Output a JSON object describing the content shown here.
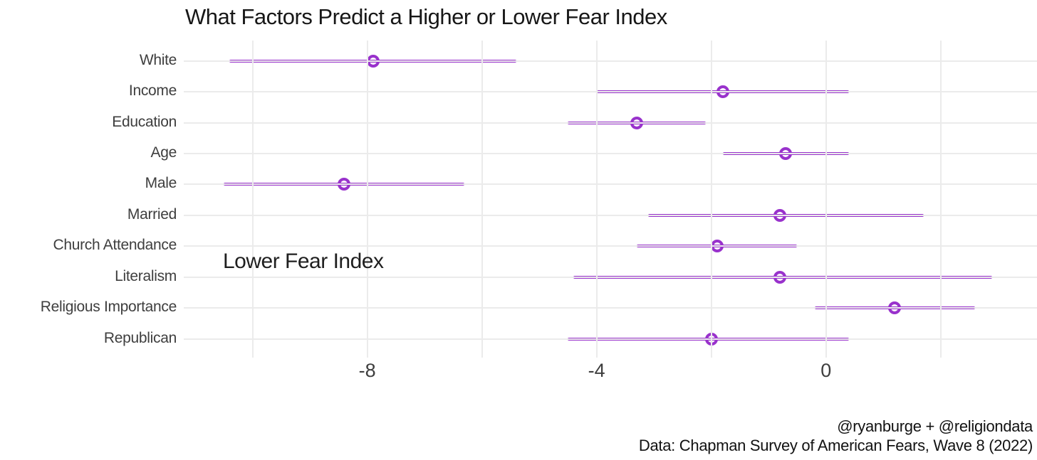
{
  "chart_data": {
    "type": "scatter",
    "subtype": "coefficient-dot-whisker",
    "title": "What Factors Predict a Higher or Lower Fear Index",
    "annotation": "Lower Fear Index",
    "caption_line1": "@ryanburge + @religiondata",
    "caption_line2": "Data: Chapman Survey of American Fears, Wave 8 (2022)",
    "xlabel": "",
    "ylabel": "",
    "legend_position": "none",
    "grid": "on",
    "x_ticks": [
      -8,
      -4,
      0
    ],
    "x_minor_gridlines": [
      -10,
      -6,
      -2,
      2
    ],
    "xlim": [
      -11.2,
      3.68
    ],
    "zero_reference_line": 0,
    "accent_color": "#9932CC",
    "grid_color": "#ebebeb",
    "zero_line_color": "#1c1c1c",
    "categories": [
      "White",
      "Income",
      "Education",
      "Age",
      "Male",
      "Married",
      "Church Attendance",
      "Literalism",
      "Religious Importance",
      "Republican"
    ],
    "series": [
      {
        "name": "estimate",
        "values": [
          -7.9,
          -1.8,
          -3.3,
          -0.7,
          -8.4,
          -0.8,
          -1.9,
          -0.8,
          1.2,
          -2.0
        ]
      },
      {
        "name": "ci_low",
        "values": [
          -10.4,
          -4.0,
          -4.5,
          -1.8,
          -10.5,
          -3.1,
          -3.3,
          -4.4,
          -0.2,
          -4.5
        ]
      },
      {
        "name": "ci_high",
        "values": [
          -5.4,
          0.4,
          -2.1,
          0.4,
          -6.3,
          1.7,
          -0.5,
          2.9,
          2.6,
          0.4
        ]
      }
    ]
  }
}
